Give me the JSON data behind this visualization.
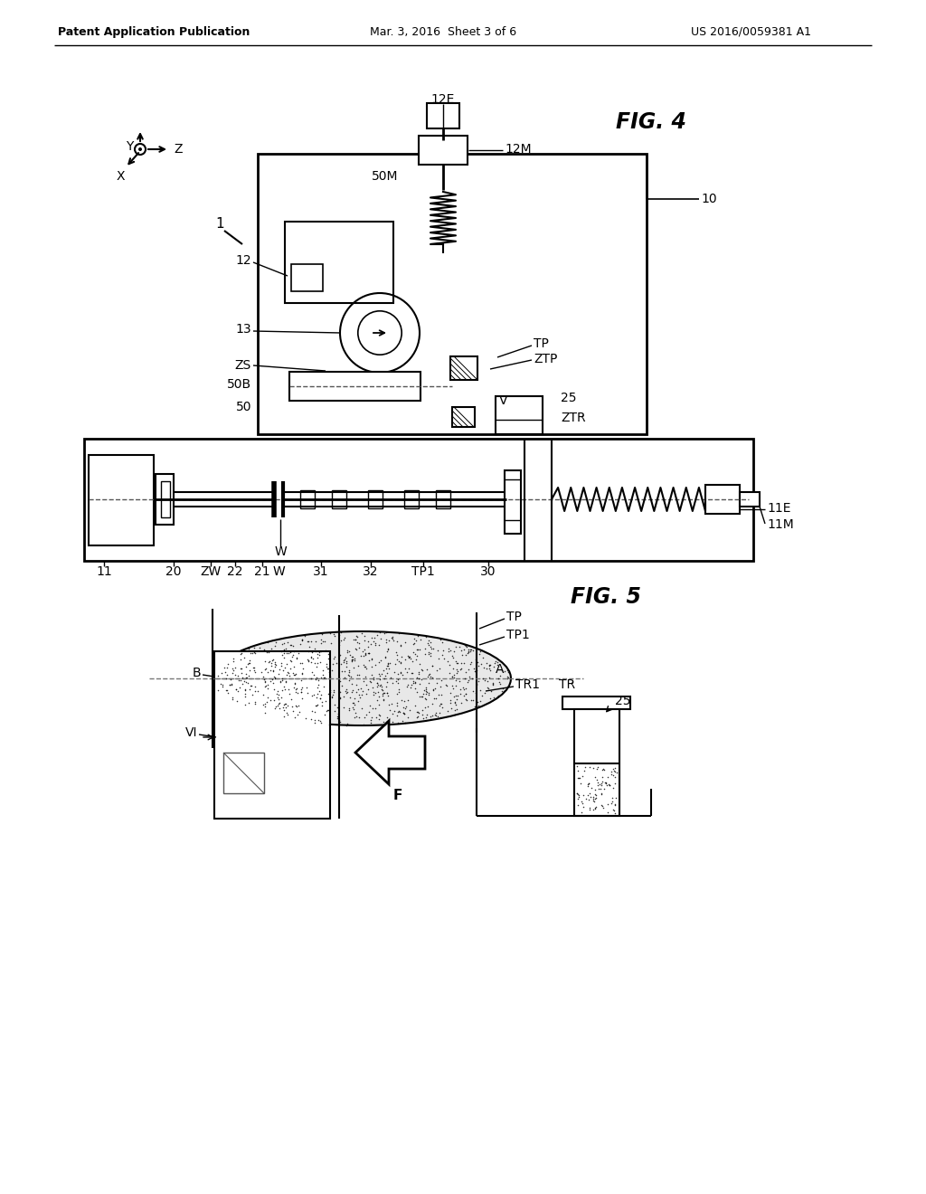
{
  "bg_color": "#ffffff",
  "line_color": "#000000",
  "header_left": "Patent Application Publication",
  "header_mid": "Mar. 3, 2016  Sheet 3 of 6",
  "header_right": "US 2016/0059381 A1"
}
